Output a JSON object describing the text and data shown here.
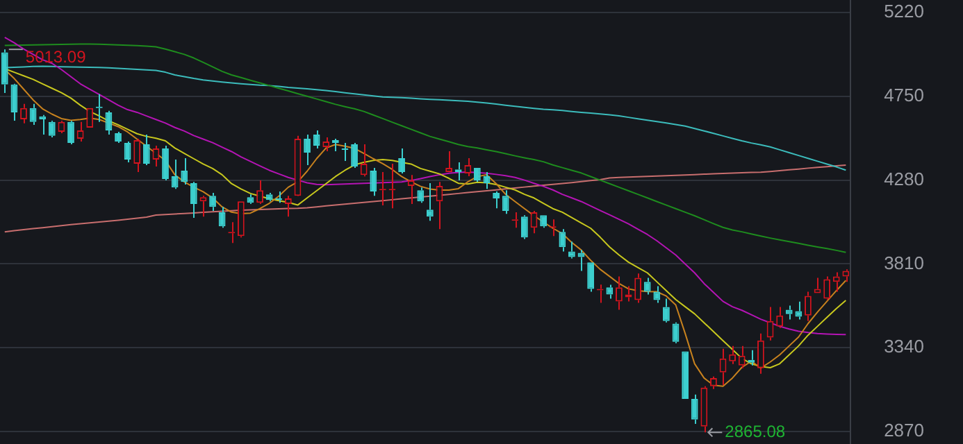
{
  "chart_data": {
    "type": "candlestick",
    "categories": [
      null,
      null,
      null,
      null,
      null,
      null,
      null,
      null,
      null,
      null,
      null,
      null,
      null,
      null,
      null,
      null,
      null,
      null,
      null,
      null,
      null,
      null,
      null,
      null,
      null,
      null,
      null,
      null,
      null,
      null,
      null,
      null,
      null,
      null,
      null,
      null,
      null,
      null,
      null,
      null,
      null,
      null,
      null,
      null,
      null,
      null,
      null,
      null,
      null,
      null,
      null,
      null,
      null,
      null,
      null,
      null,
      null,
      null,
      null,
      null,
      null,
      null,
      null,
      null,
      null,
      null,
      null,
      null,
      null,
      null,
      null,
      null,
      null,
      null,
      null,
      null,
      null,
      null,
      null,
      null,
      null,
      null,
      null,
      null,
      null,
      null,
      null,
      null,
      null,
      null
    ],
    "ohlc": [
      [
        4996,
        5013.09,
        4769,
        4816
      ],
      [
        4816,
        4820,
        4613,
        4660
      ],
      [
        4621,
        4707,
        4598,
        4684
      ],
      [
        4684,
        4707,
        4590,
        4606
      ],
      [
        4637,
        4645,
        4535,
        4621
      ],
      [
        4606,
        4613,
        4520,
        4528
      ],
      [
        4551,
        4613,
        4543,
        4606
      ],
      [
        4606,
        4613,
        4481,
        4489
      ],
      [
        4512,
        4606,
        4496,
        4559
      ],
      [
        4574,
        4684,
        4574,
        4684
      ],
      [
        4691,
        4762,
        4606,
        4684
      ],
      [
        4660,
        4668,
        4535,
        4559
      ],
      [
        4543,
        4551,
        4489,
        4496
      ],
      [
        4489,
        4496,
        4380,
        4395
      ],
      [
        4372,
        4512,
        4325,
        4504
      ],
      [
        4481,
        4535,
        4364,
        4372
      ],
      [
        4395,
        4473,
        4356,
        4457
      ],
      [
        4457,
        4473,
        4278,
        4286
      ],
      [
        4302,
        4395,
        4231,
        4239
      ],
      [
        4333,
        4403,
        4255,
        4270
      ],
      [
        4263,
        4270,
        4068,
        4146
      ],
      [
        4161,
        4192,
        4075,
        4184
      ],
      [
        4192,
        4208,
        4107,
        4130
      ],
      [
        4099,
        4130,
        4013,
        4021
      ],
      [
        3982,
        4044,
        3927,
        3990
      ],
      [
        3966,
        4161,
        3958,
        4161
      ],
      [
        4184,
        4200,
        4146,
        4153
      ],
      [
        4153,
        4278,
        4146,
        4223
      ],
      [
        4200,
        4208,
        4161,
        4169
      ],
      [
        4177,
        4216,
        4153,
        4169
      ],
      [
        4146,
        4192,
        4075,
        4177
      ],
      [
        4192,
        4528,
        4190,
        4512
      ],
      [
        4512,
        4535,
        4364,
        4434
      ],
      [
        4535,
        4559,
        4457,
        4473
      ],
      [
        4465,
        4520,
        4442,
        4496
      ],
      [
        4504,
        4512,
        4442,
        4489
      ],
      [
        4457,
        4489,
        4387,
        4450
      ],
      [
        4481,
        4489,
        4348,
        4356
      ],
      [
        4309,
        4481,
        4301,
        4372
      ],
      [
        4333,
        4348,
        4192,
        4216
      ],
      [
        4223,
        4325,
        4138,
        4231
      ],
      [
        4223,
        4372,
        4122,
        4231
      ],
      [
        4403,
        4457,
        4317,
        4325
      ],
      [
        4247,
        4309,
        4146,
        4278
      ],
      [
        4223,
        4239,
        4153,
        4161
      ],
      [
        4114,
        4263,
        4052,
        4075
      ],
      [
        4161,
        4270,
        4005,
        4247
      ],
      [
        4325,
        4442,
        4325,
        4348
      ],
      [
        4340,
        4380,
        4278,
        4325
      ],
      [
        4317,
        4403,
        4302,
        4364
      ],
      [
        4348,
        4348,
        4270,
        4278
      ],
      [
        4302,
        4325,
        4231,
        4263
      ],
      [
        4208,
        4216,
        4122,
        4177
      ],
      [
        4192,
        4223,
        4091,
        4107
      ],
      [
        4052,
        4099,
        4013,
        4060
      ],
      [
        4075,
        4083,
        3950,
        3958
      ],
      [
        4013,
        4107,
        3982,
        4099
      ],
      [
        4083,
        4083,
        4013,
        4021
      ],
      [
        4013,
        4060,
        3966,
        4021
      ],
      [
        3990,
        4005,
        3880,
        3904
      ],
      [
        3880,
        3935,
        3841,
        3849
      ],
      [
        3872,
        3888,
        3771,
        3849
      ],
      [
        3818,
        3818,
        3654,
        3670
      ],
      [
        3662,
        3694,
        3592,
        3670
      ],
      [
        3678,
        3693,
        3615,
        3638
      ],
      [
        3600,
        3740,
        3553,
        3678
      ],
      [
        3623,
        3685,
        3600,
        3638
      ],
      [
        3607,
        3756,
        3592,
        3732
      ],
      [
        3709,
        3732,
        3638,
        3654
      ],
      [
        3654,
        3685,
        3592,
        3607
      ],
      [
        3568,
        3615,
        3482,
        3490
      ],
      [
        3475,
        3482,
        3365,
        3373
      ],
      [
        3319,
        3319,
        3053,
        3053
      ],
      [
        3053,
        3077,
        2913,
        2937
      ],
      [
        2898,
        3124,
        2865.08,
        3116
      ],
      [
        3124,
        3178,
        3108,
        3170
      ],
      [
        3202,
        3334,
        3131,
        3280
      ],
      [
        3264,
        3350,
        3248,
        3303
      ],
      [
        3241,
        3350,
        3225,
        3295
      ],
      [
        3272,
        3326,
        3241,
        3256
      ],
      [
        3225,
        3420,
        3194,
        3381
      ],
      [
        3397,
        3568,
        3381,
        3490
      ],
      [
        3459,
        3568,
        3451,
        3521
      ],
      [
        3553,
        3576,
        3498,
        3529
      ],
      [
        3545,
        3599,
        3498,
        3514
      ],
      [
        3521,
        3654,
        3490,
        3631
      ],
      [
        3646,
        3732,
        3646,
        3670
      ],
      [
        3615,
        3740,
        3607,
        3724
      ],
      [
        3709,
        3763,
        3654,
        3740
      ],
      [
        3740,
        3779,
        3709,
        3771
      ]
    ],
    "colors": [
      "#3ccfcf",
      "#3ccfcf",
      "#d2141e",
      "#3ccfcf",
      "#3ccfcf",
      "#3ccfcf",
      "#d2141e",
      "#3ccfcf",
      "#d2141e",
      "#d2141e",
      "#3ccfcf",
      "#3ccfcf",
      "#3ccfcf",
      "#3ccfcf",
      "#d2141e",
      "#3ccfcf",
      "#d2141e",
      "#3ccfcf",
      "#3ccfcf",
      "#3ccfcf",
      "#3ccfcf",
      "#d2141e",
      "#3ccfcf",
      "#3ccfcf",
      "#d2141e",
      "#d2141e",
      "#3ccfcf",
      "#d2141e",
      "#3ccfcf",
      "#3ccfcf",
      "#d2141e",
      "#d2141e",
      "#3ccfcf",
      "#3ccfcf",
      "#d2141e",
      "#3ccfcf",
      "#3ccfcf",
      "#3ccfcf",
      "#d2141e",
      "#3ccfcf",
      "#d2141e",
      "#d2141e",
      "#3ccfcf",
      "#d2141e",
      "#3ccfcf",
      "#3ccfcf",
      "#d2141e",
      "#d2141e",
      "#3ccfcf",
      "#d2141e",
      "#3ccfcf",
      "#3ccfcf",
      "#3ccfcf",
      "#3ccfcf",
      "#d2141e",
      "#3ccfcf",
      "#d2141e",
      "#3ccfcf",
      "#d2141e",
      "#3ccfcf",
      "#3ccfcf",
      "#3ccfcf",
      "#3ccfcf",
      "#d2141e",
      "#3ccfcf",
      "#d2141e",
      "#d2141e",
      "#d2141e",
      "#3ccfcf",
      "#3ccfcf",
      "#3ccfcf",
      "#3ccfcf",
      "#3ccfcf",
      "#3ccfcf",
      "#d2141e",
      "#d2141e",
      "#d2141e",
      "#d2141e",
      "#d2141e",
      "#3ccfcf",
      "#d2141e",
      "#d2141e",
      "#d2141e",
      "#3ccfcf",
      "#3ccfcf",
      "#d2141e",
      "#d2141e",
      "#d2141e",
      "#d2141e",
      "#d2141e"
    ],
    "series": [
      {
        "type": "line",
        "color": "#c8821e",
        "values": [
          4900,
          4850,
          4790,
          4730,
          4680,
          4650,
          4625,
          4615,
          4620,
          4628,
          4620,
          4600,
          4580,
          4550,
          4510,
          4470,
          4430,
          4390,
          4310,
          4270,
          4240,
          4215,
          4180,
          4130,
          4100,
          4092,
          4095,
          4120,
          4150,
          4190,
          4240,
          4270,
          4330,
          4400,
          4460,
          4480,
          4470,
          4458,
          4430,
          4400,
          4372,
          4340,
          4300,
          4270,
          4245,
          4230,
          4224,
          4224,
          4232,
          4270,
          4300,
          4310,
          4260,
          4200,
          4160,
          4120,
          4080,
          4045,
          4010,
          3980,
          3930,
          3888,
          3830,
          3780,
          3740,
          3700,
          3670,
          3660,
          3655,
          3654,
          3630,
          3580,
          3420,
          3250,
          3170,
          3130,
          3124,
          3170,
          3230,
          3264,
          3226,
          3260,
          3300,
          3350,
          3400,
          3475,
          3540,
          3600,
          3660,
          3717
        ]
      },
      {
        "type": "line",
        "color": "#c8c81e",
        "values": [
          4905,
          4885,
          4865,
          4845,
          4820,
          4795,
          4770,
          4740,
          4700,
          4665,
          4640,
          4612,
          4590,
          4565,
          4540,
          4525,
          4515,
          4500,
          4460,
          4430,
          4400,
          4370,
          4345,
          4310,
          4260,
          4230,
          4205,
          4190,
          4175,
          4165,
          4155,
          4140,
          4180,
          4220,
          4260,
          4300,
          4335,
          4365,
          4380,
          4390,
          4395,
          4390,
          4380,
          4370,
          4345,
          4330,
          4315,
          4290,
          4262,
          4258,
          4268,
          4265,
          4255,
          4240,
          4225,
          4200,
          4180,
          4150,
          4120,
          4100,
          4070,
          4040,
          4010,
          3960,
          3905,
          3860,
          3820,
          3790,
          3760,
          3710,
          3660,
          3610,
          3570,
          3530,
          3480,
          3430,
          3380,
          3330,
          3280,
          3250,
          3235,
          3228,
          3250,
          3300,
          3350,
          3410,
          3460,
          3510,
          3560,
          3605
        ]
      },
      {
        "type": "line",
        "color": "#b414b4",
        "values": [
          5080,
          5050,
          5015,
          4985,
          4955,
          4935,
          4900,
          4860,
          4820,
          4790,
          4760,
          4730,
          4700,
          4675,
          4660,
          4640,
          4620,
          4600,
          4575,
          4555,
          4530,
          4510,
          4490,
          4465,
          4440,
          4410,
          4385,
          4360,
          4335,
          4315,
          4295,
          4280,
          4265,
          4256,
          4254,
          4256,
          4258,
          4260,
          4262,
          4264,
          4266,
          4268,
          4270,
          4278,
          4288,
          4300,
          4310,
          4318,
          4323,
          4325,
          4322,
          4318,
          4312,
          4305,
          4295,
          4280,
          4262,
          4245,
          4225,
          4200,
          4180,
          4160,
          4135,
          4110,
          4085,
          4060,
          4035,
          4005,
          3975,
          3940,
          3900,
          3860,
          3810,
          3760,
          3700,
          3650,
          3600,
          3570,
          3550,
          3525,
          3500,
          3480,
          3460,
          3445,
          3432,
          3425,
          3420,
          3417,
          3415,
          3414
        ]
      },
      {
        "type": "line",
        "color": "#1e8c1e",
        "values": [
          5035,
          5036,
          5037,
          5038,
          5039,
          5040,
          5041,
          5042,
          5043,
          5043,
          5042,
          5040,
          5038,
          5036,
          5034,
          5031,
          5027,
          5015,
          5000,
          4985,
          4965,
          4940,
          4915,
          4890,
          4870,
          4855,
          4840,
          4825,
          4810,
          4795,
          4780,
          4765,
          4750,
          4735,
          4720,
          4705,
          4692,
          4680,
          4665,
          4645,
          4625,
          4605,
          4585,
          4565,
          4545,
          4525,
          4510,
          4495,
          4480,
          4468,
          4460,
          4450,
          4440,
          4428,
          4416,
          4405,
          4395,
          4383,
          4365,
          4350,
          4335,
          4320,
          4300,
          4280,
          4260,
          4240,
          4220,
          4200,
          4180,
          4160,
          4140,
          4120,
          4100,
          4080,
          4058,
          4036,
          4015,
          4000,
          3990,
          3978,
          3966,
          3955,
          3945,
          3935,
          3925,
          3915,
          3905,
          3896,
          3886,
          3875
        ]
      },
      {
        "type": "line",
        "color": "#3cbcbc",
        "values": [
          4911,
          4913,
          4915,
          4917,
          4918,
          4917,
          4916,
          4915,
          4914,
          4913,
          4912,
          4910,
          4907,
          4904,
          4901,
          4898,
          4895,
          4885,
          4870,
          4860,
          4850,
          4842,
          4836,
          4830,
          4825,
          4820,
          4816,
          4812,
          4810,
          4806,
          4800,
          4796,
          4792,
          4787,
          4782,
          4776,
          4770,
          4764,
          4758,
          4752,
          4746,
          4744,
          4742,
          4739,
          4736,
          4733,
          4731,
          4728,
          4725,
          4722,
          4717,
          4712,
          4706,
          4700,
          4694,
          4688,
          4682,
          4677,
          4674,
          4670,
          4665,
          4660,
          4656,
          4651,
          4646,
          4640,
          4632,
          4624,
          4616,
          4608,
          4600,
          4592,
          4583,
          4569,
          4556,
          4542,
          4528,
          4514,
          4500,
          4488,
          4478,
          4466,
          4450,
          4434,
          4418,
          4402,
          4386,
          4370,
          4354,
          4336
        ]
      },
      {
        "type": "line",
        "color": "#c86e6e",
        "values": [
          3990,
          3996,
          4002,
          4008,
          4013,
          4019,
          4025,
          4030,
          4035,
          4040,
          4045,
          4050,
          4055,
          4061,
          4066,
          4072,
          4084,
          4087,
          4090,
          4093,
          4096,
          4099,
          4102,
          4105,
          4108,
          4111,
          4113,
          4115,
          4117,
          4119,
          4121,
          4122,
          4125,
          4130,
          4135,
          4140,
          4145,
          4150,
          4155,
          4160,
          4165,
          4170,
          4175,
          4180,
          4185,
          4190,
          4195,
          4200,
          4205,
          4210,
          4215,
          4220,
          4225,
          4231,
          4236,
          4241,
          4246,
          4251,
          4256,
          4261,
          4266,
          4272,
          4277,
          4282,
          4292,
          4295,
          4297,
          4299,
          4301,
          4303,
          4305,
          4307,
          4309,
          4311,
          4313,
          4315,
          4317,
          4319,
          4321,
          4323,
          4324,
          4328,
          4333,
          4338,
          4342,
          4347,
          4351,
          4355,
          4360,
          4364
        ]
      }
    ],
    "ylim": [
      2800,
      5290
    ],
    "yticks": [
      2870,
      3340,
      3810,
      4280,
      4750,
      5220
    ],
    "grid": "y",
    "tick_labels": "y",
    "annotations": [
      "5013.09",
      "2865.08"
    ]
  }
}
